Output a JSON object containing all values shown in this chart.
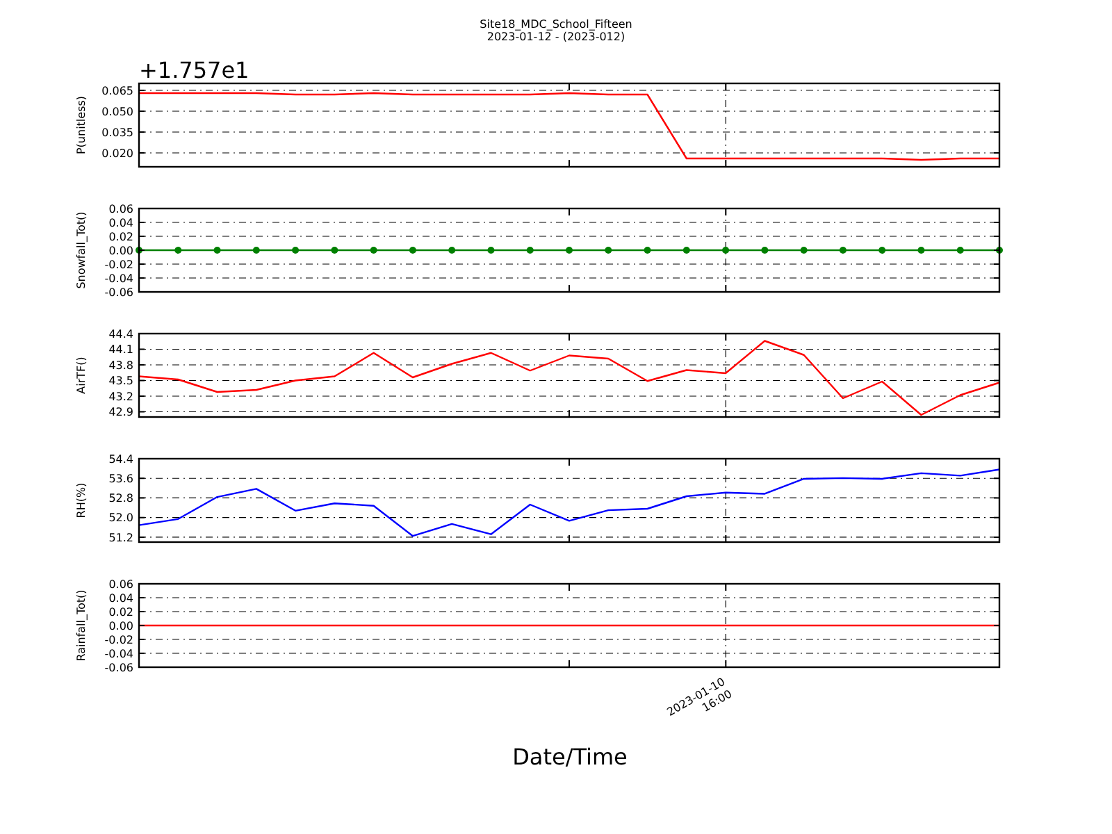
{
  "chart_data": [
    {
      "type": "line",
      "title": "Site18_MDC_School_Fifteen",
      "subtitle": "2023-01-12 - (2023-012)",
      "ylabel": "P(unitless)",
      "annotations": [
        "+1.757e1"
      ],
      "tick_labels": "y",
      "grid": "y",
      "categories": [
        null,
        null,
        null,
        null,
        null,
        null,
        null,
        null,
        null,
        null,
        null,
        null,
        null,
        null,
        null,
        null,
        null,
        null,
        null,
        null,
        null,
        null,
        null
      ],
      "ylim": [
        0.01,
        0.07
      ],
      "yticks": [
        {
          "value": 0.02,
          "label": "0.020"
        },
        {
          "value": 0.035,
          "label": "0.035"
        },
        {
          "value": 0.05,
          "label": "0.050"
        },
        {
          "value": 0.065,
          "label": "0.065"
        }
      ],
      "series": [
        {
          "color": "#ff0000",
          "values": [
            0.063,
            0.063,
            0.063,
            0.063,
            0.062,
            0.062,
            0.063,
            0.062,
            0.062,
            0.062,
            0.062,
            0.063,
            0.062,
            0.062,
            0.016,
            0.016,
            0.016,
            0.016,
            0.016,
            0.016,
            0.015,
            0.016,
            0.016
          ]
        }
      ]
    },
    {
      "type": "line",
      "ylabel": "Snowfall_Tot()",
      "tick_labels": "y",
      "grid": "y",
      "marker": "circle",
      "categories": [
        null,
        null,
        null,
        null,
        null,
        null,
        null,
        null,
        null,
        null,
        null,
        null,
        null,
        null,
        null,
        null,
        null,
        null,
        null,
        null,
        null,
        null,
        null
      ],
      "ylim": [
        -0.06,
        0.06
      ],
      "yticks": [
        {
          "value": -0.06,
          "label": "-0.06"
        },
        {
          "value": -0.04,
          "label": "-0.04"
        },
        {
          "value": -0.02,
          "label": "-0.02"
        },
        {
          "value": 0,
          "label": "0.00"
        },
        {
          "value": 0.02,
          "label": "0.02"
        },
        {
          "value": 0.04,
          "label": "0.04"
        },
        {
          "value": 0.06,
          "label": "0.06"
        }
      ],
      "series": [
        {
          "color": "#008000",
          "values": [
            0,
            0,
            0,
            0,
            0,
            0,
            0,
            0,
            0,
            0,
            0,
            0,
            0,
            0,
            0,
            0,
            0,
            0,
            0,
            0,
            0,
            0,
            0
          ]
        }
      ]
    },
    {
      "type": "line",
      "ylabel": "AirTF()",
      "tick_labels": "y",
      "grid": "y",
      "categories": [
        null,
        null,
        null,
        null,
        null,
        null,
        null,
        null,
        null,
        null,
        null,
        null,
        null,
        null,
        null,
        null,
        null,
        null,
        null,
        null,
        null,
        null,
        null
      ],
      "ylim": [
        42.8,
        44.4
      ],
      "yticks": [
        {
          "value": 42.9,
          "label": "42.9"
        },
        {
          "value": 43.2,
          "label": "43.2"
        },
        {
          "value": 43.5,
          "label": "43.5"
        },
        {
          "value": 43.8,
          "label": "43.8"
        },
        {
          "value": 44.1,
          "label": "44.1"
        },
        {
          "value": 44.4,
          "label": "44.4"
        }
      ],
      "series": [
        {
          "color": "#ff0000",
          "values": [
            43.58,
            43.52,
            43.28,
            43.32,
            43.5,
            43.58,
            44.03,
            43.56,
            43.82,
            44.03,
            43.69,
            43.98,
            43.92,
            43.49,
            43.7,
            43.64,
            44.26,
            43.99,
            43.16,
            43.48,
            42.84,
            43.22,
            43.46
          ]
        }
      ]
    },
    {
      "type": "line",
      "ylabel": "RH(%)",
      "tick_labels": "y",
      "grid": "y",
      "categories": [
        null,
        null,
        null,
        null,
        null,
        null,
        null,
        null,
        null,
        null,
        null,
        null,
        null,
        null,
        null,
        null,
        null,
        null,
        null,
        null,
        null,
        null,
        null
      ],
      "ylim": [
        51.0,
        54.4
      ],
      "yticks": [
        {
          "value": 51.2,
          "label": "51.2"
        },
        {
          "value": 52.0,
          "label": "52.0"
        },
        {
          "value": 52.8,
          "label": "52.8"
        },
        {
          "value": 53.6,
          "label": "53.6"
        },
        {
          "value": 54.4,
          "label": "54.4"
        }
      ],
      "series": [
        {
          "color": "#0000ff",
          "values": [
            51.69,
            51.94,
            52.84,
            53.17,
            52.28,
            52.58,
            52.48,
            51.25,
            51.74,
            51.32,
            52.53,
            51.87,
            52.3,
            52.36,
            52.87,
            53.02,
            52.97,
            53.58,
            53.61,
            53.58,
            53.81,
            53.71,
            53.96
          ]
        }
      ]
    },
    {
      "type": "line",
      "ylabel": "Rainfall_Tot()",
      "xlabel": "Date/Time",
      "tick_labels": "y",
      "grid": "y",
      "annotations": [
        "2023-01-10\n16:00"
      ],
      "categories": [
        null,
        null,
        null,
        null,
        null,
        null,
        null,
        null,
        null,
        null,
        null,
        null,
        null,
        null,
        null,
        null,
        null,
        null,
        null,
        null,
        null,
        null,
        null
      ],
      "ylim": [
        -0.06,
        0.06
      ],
      "yticks": [
        {
          "value": -0.06,
          "label": "-0.06"
        },
        {
          "value": -0.04,
          "label": "-0.04"
        },
        {
          "value": -0.02,
          "label": "-0.02"
        },
        {
          "value": 0,
          "label": "0.00"
        },
        {
          "value": 0.02,
          "label": "0.02"
        },
        {
          "value": 0.04,
          "label": "0.04"
        },
        {
          "value": 0.06,
          "label": "0.06"
        }
      ],
      "series": [
        {
          "color": "#ff0000",
          "values": [
            0,
            0,
            0,
            0,
            0,
            0,
            0,
            0,
            0,
            0,
            0,
            0,
            0,
            0,
            0,
            0,
            0,
            0,
            0,
            0,
            0,
            0,
            0
          ]
        }
      ]
    }
  ]
}
